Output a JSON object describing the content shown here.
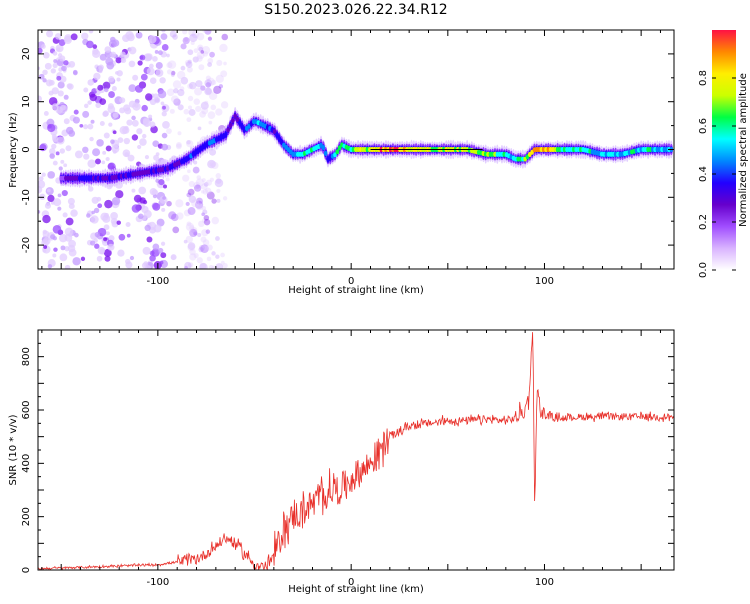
{
  "title": "S150.2023.026.22.34.R12",
  "chart_data": [
    {
      "type": "heatmap",
      "xlabel": "Height of straight line (km)",
      "ylabel": "Frequency (Hz)",
      "xlim": [
        -162,
        167
      ],
      "ylim": [
        -25,
        25
      ],
      "x_ticks": [
        -100,
        0,
        100
      ],
      "y_ticks": [
        -20,
        -10,
        0,
        10,
        20
      ],
      "colorbar": {
        "label": "Normalized spectral amplitude",
        "range": [
          0,
          1
        ],
        "ticks": [
          "0.0",
          "0.2",
          "0.4",
          "0.6",
          "0.8"
        ],
        "tick_values": [
          0.0,
          0.2,
          0.4,
          0.6,
          0.8
        ],
        "colors": [
          "#ffffff",
          "#d9b3ff",
          "#a04dff",
          "#6600cc",
          "#2200ff",
          "#0088ff",
          "#00ffff",
          "#00ff44",
          "#ccff00",
          "#ffee00",
          "#ff8800",
          "#ff1144"
        ]
      },
      "ridge": {
        "x": [
          -160,
          -140,
          -125,
          -110,
          -95,
          -85,
          -75,
          -65,
          -60,
          -55,
          -50,
          -45,
          -40,
          -35,
          -30,
          -25,
          -20,
          -15,
          -12,
          -8,
          -5,
          0,
          10,
          20,
          30,
          40,
          50,
          60,
          70,
          75,
          80,
          85,
          90,
          95,
          100,
          110,
          120,
          130,
          140,
          150,
          160,
          166
        ],
        "y": [
          -6,
          -6,
          -6,
          -5,
          -4,
          -2,
          1,
          3,
          7,
          4,
          6,
          5,
          4,
          1,
          -1,
          -1,
          0,
          1,
          -2,
          -1,
          1,
          0,
          0,
          0,
          0,
          0,
          0,
          0,
          -1,
          -1,
          -1,
          -2,
          -2,
          0,
          0,
          0,
          0,
          -1,
          -1,
          0,
          0,
          0
        ],
        "amplitude": [
          0.15,
          0.3,
          0.3,
          0.3,
          0.3,
          0.35,
          0.4,
          0.35,
          0.3,
          0.4,
          0.4,
          0.5,
          0.35,
          0.45,
          0.5,
          0.55,
          0.6,
          0.45,
          0.4,
          0.6,
          0.7,
          0.65,
          0.8,
          0.95,
          0.8,
          0.7,
          0.75,
          0.7,
          0.65,
          0.7,
          0.55,
          0.5,
          0.7,
          0.95,
          0.9,
          0.6,
          0.55,
          0.5,
          0.5,
          0.55,
          0.5,
          0.45
        ]
      },
      "noise_region_x": [
        -162,
        -95
      ]
    },
    {
      "type": "line",
      "xlabel": "Height of straight line (km)",
      "ylabel": "SNR (10 * v/v)",
      "xlim": [
        -162,
        167
      ],
      "ylim": [
        0,
        900
      ],
      "x_ticks": [
        -100,
        0,
        100
      ],
      "y_ticks": [
        0,
        200,
        400,
        600,
        800
      ],
      "color": "#e8302a",
      "series": [
        {
          "x": [
            -162,
            -140,
            -120,
            -100,
            -90,
            -80,
            -75,
            -70,
            -65,
            -60,
            -55,
            -50,
            -45,
            -40,
            -35,
            -30,
            -25,
            -20,
            -15,
            -10,
            -5,
            0,
            5,
            10,
            15,
            20,
            25,
            30,
            40,
            50,
            60,
            70,
            80,
            85,
            90,
            92,
            93,
            94,
            95,
            96,
            98,
            100,
            110,
            120,
            130,
            140,
            150,
            160,
            166
          ],
          "y": [
            5,
            10,
            15,
            20,
            30,
            40,
            60,
            90,
            120,
            100,
            60,
            20,
            10,
            50,
            150,
            200,
            220,
            250,
            280,
            300,
            310,
            340,
            370,
            400,
            450,
            500,
            520,
            540,
            550,
            560,
            560,
            565,
            560,
            570,
            600,
            650,
            800,
            880,
            210,
            680,
            600,
            580,
            570,
            575,
            575,
            575,
            575,
            575,
            575
          ]
        }
      ]
    }
  ]
}
